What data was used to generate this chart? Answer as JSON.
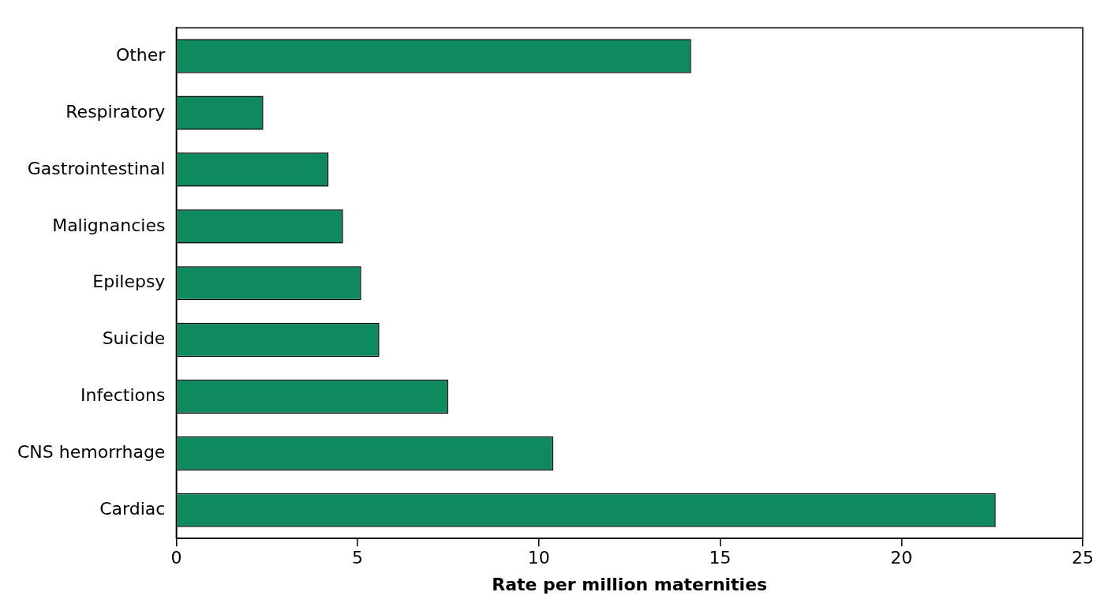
{
  "chart_data": {
    "type": "bar",
    "orientation": "horizontal",
    "xlabel": "Rate per million maternities",
    "categories": [
      "Other",
      "Respiratory",
      "Gastrointestinal",
      "Malignancies",
      "Epilepsy",
      "Suicide",
      "Infections",
      "CNS hemorrhage",
      "Cardiac"
    ],
    "values": [
      14.2,
      2.4,
      4.2,
      4.6,
      5.1,
      5.6,
      7.5,
      10.4,
      22.6
    ],
    "color": "#0f8a5f",
    "xlim": [
      0,
      25
    ],
    "xticks": [
      0,
      5,
      10,
      15,
      20,
      25
    ],
    "grid": false,
    "legend": false
  }
}
